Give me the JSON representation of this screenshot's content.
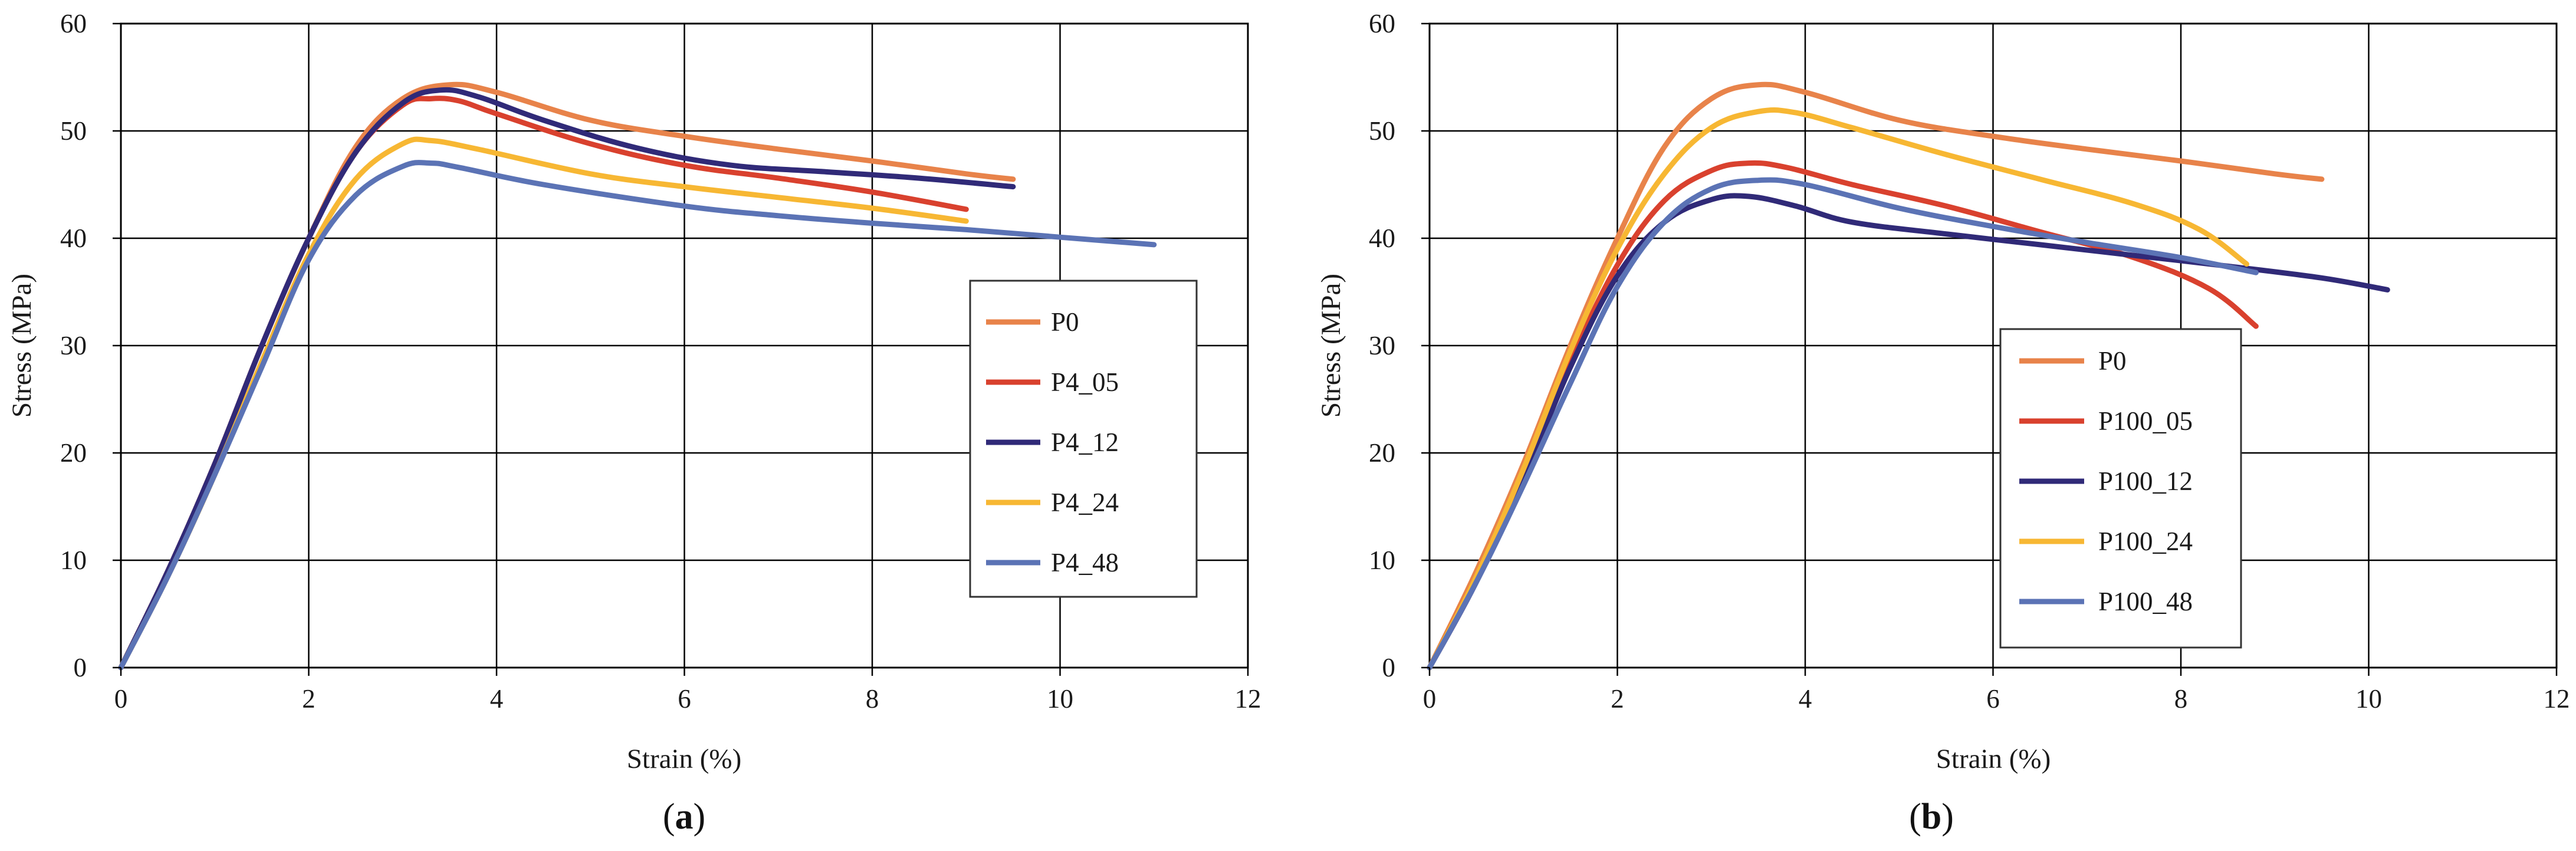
{
  "chart_data": [
    {
      "type": "line",
      "panel": "a",
      "panel_label": "a",
      "xlabel": "Strain (%)",
      "ylabel": "Stress (MPa)",
      "xlim": [
        0,
        12
      ],
      "ylim": [
        0,
        60
      ],
      "xticks": [
        0,
        2,
        4,
        6,
        8,
        10,
        12
      ],
      "yticks": [
        0,
        10,
        20,
        30,
        40,
        50,
        60
      ],
      "grid": true,
      "legend_position": "right",
      "series": [
        {
          "name": "P0",
          "color": "#E8834A",
          "points": [
            [
              0,
              0
            ],
            [
              0.5,
              9
            ],
            [
              1,
              19
            ],
            [
              1.5,
              30
            ],
            [
              2,
              40
            ],
            [
              2.5,
              48.5
            ],
            [
              3,
              53
            ],
            [
              3.5,
              54.3
            ],
            [
              4,
              53.6
            ],
            [
              5,
              51
            ],
            [
              6,
              49.5
            ],
            [
              7,
              48.3
            ],
            [
              8,
              47.2
            ],
            [
              9,
              46
            ],
            [
              9.5,
              45.5
            ]
          ]
        },
        {
          "name": "P4_05",
          "color": "#D9412E",
          "points": [
            [
              0,
              0
            ],
            [
              0.5,
              9
            ],
            [
              1,
              19
            ],
            [
              1.5,
              30
            ],
            [
              2,
              40
            ],
            [
              2.5,
              48
            ],
            [
              3,
              52.4
            ],
            [
              3.3,
              53
            ],
            [
              3.6,
              52.8
            ],
            [
              4,
              51.6
            ],
            [
              5,
              48.8
            ],
            [
              6,
              46.8
            ],
            [
              7,
              45.6
            ],
            [
              8,
              44.3
            ],
            [
              9,
              42.7
            ]
          ]
        },
        {
          "name": "P4_12",
          "color": "#302A78",
          "points": [
            [
              0,
              0
            ],
            [
              0.5,
              9
            ],
            [
              1,
              19
            ],
            [
              1.5,
              30
            ],
            [
              2,
              40
            ],
            [
              2.5,
              48
            ],
            [
              3,
              52.6
            ],
            [
              3.4,
              53.8
            ],
            [
              3.8,
              53.2
            ],
            [
              4.5,
              51
            ],
            [
              5.5,
              48.4
            ],
            [
              6.5,
              46.8
            ],
            [
              7.5,
              46.2
            ],
            [
              8.5,
              45.6
            ],
            [
              9.5,
              44.8
            ]
          ]
        },
        {
          "name": "P4_24",
          "color": "#F7B733",
          "points": [
            [
              0,
              0
            ],
            [
              0.5,
              8.5
            ],
            [
              1,
              18
            ],
            [
              1.5,
              28.5
            ],
            [
              2,
              38.5
            ],
            [
              2.5,
              45.5
            ],
            [
              3,
              48.8
            ],
            [
              3.3,
              49.1
            ],
            [
              3.8,
              48.3
            ],
            [
              5,
              46
            ],
            [
              6,
              44.8
            ],
            [
              7,
              43.8
            ],
            [
              8,
              42.8
            ],
            [
              9,
              41.6
            ]
          ]
        },
        {
          "name": "P4_48",
          "color": "#5B73B5",
          "points": [
            [
              0,
              0
            ],
            [
              0.5,
              8.5
            ],
            [
              1,
              18
            ],
            [
              1.5,
              28
            ],
            [
              2,
              38
            ],
            [
              2.5,
              44
            ],
            [
              3,
              46.7
            ],
            [
              3.3,
              47
            ],
            [
              3.6,
              46.6
            ],
            [
              4.5,
              45
            ],
            [
              6,
              43
            ],
            [
              7,
              42.1
            ],
            [
              8,
              41.4
            ],
            [
              9,
              40.8
            ],
            [
              10,
              40.1
            ],
            [
              11,
              39.4
            ]
          ]
        }
      ]
    },
    {
      "type": "line",
      "panel": "b",
      "panel_label": "b",
      "xlabel": "Strain (%)",
      "ylabel": "Stress (MPa)",
      "xlim": [
        0,
        12
      ],
      "ylim": [
        0,
        60
      ],
      "xticks": [
        0,
        2,
        4,
        6,
        8,
        10,
        12
      ],
      "yticks": [
        0,
        10,
        20,
        30,
        40,
        50,
        60
      ],
      "grid": true,
      "legend_position": "center-bottom",
      "series": [
        {
          "name": "P0",
          "color": "#E8834A",
          "points": [
            [
              0,
              0
            ],
            [
              0.5,
              9
            ],
            [
              1,
              19
            ],
            [
              1.5,
              30
            ],
            [
              2,
              40
            ],
            [
              2.5,
              48.5
            ],
            [
              3,
              53
            ],
            [
              3.5,
              54.3
            ],
            [
              4,
              53.6
            ],
            [
              5,
              51
            ],
            [
              6,
              49.5
            ],
            [
              7,
              48.3
            ],
            [
              8,
              47.2
            ],
            [
              9,
              46
            ],
            [
              9.5,
              45.5
            ]
          ]
        },
        {
          "name": "P100_05",
          "color": "#D9412E",
          "points": [
            [
              0,
              0
            ],
            [
              0.5,
              8.5
            ],
            [
              1,
              18
            ],
            [
              1.5,
              28.5
            ],
            [
              2,
              37.5
            ],
            [
              2.5,
              43.5
            ],
            [
              3,
              46.3
            ],
            [
              3.4,
              47
            ],
            [
              3.8,
              46.6
            ],
            [
              4.5,
              45
            ],
            [
              5.5,
              43
            ],
            [
              6.5,
              40.6
            ],
            [
              7.5,
              38.2
            ],
            [
              8.3,
              35.3
            ],
            [
              8.8,
              31.8
            ]
          ]
        },
        {
          "name": "P100_12",
          "color": "#302A78",
          "points": [
            [
              0,
              0
            ],
            [
              0.5,
              8
            ],
            [
              1,
              17.5
            ],
            [
              1.5,
              28
            ],
            [
              2,
              36.5
            ],
            [
              2.5,
              41.5
            ],
            [
              3,
              43.6
            ],
            [
              3.4,
              43.9
            ],
            [
              3.9,
              43
            ],
            [
              4.5,
              41.5
            ],
            [
              5.5,
              40.4
            ],
            [
              6.5,
              39.4
            ],
            [
              7.5,
              38.4
            ],
            [
              8.5,
              37.4
            ],
            [
              9.5,
              36.3
            ],
            [
              10.2,
              35.2
            ]
          ]
        },
        {
          "name": "P100_24",
          "color": "#F7B733",
          "points": [
            [
              0,
              0
            ],
            [
              0.5,
              8.5
            ],
            [
              1,
              18.5
            ],
            [
              1.5,
              29.5
            ],
            [
              2,
              39
            ],
            [
              2.5,
              46
            ],
            [
              3,
              50.3
            ],
            [
              3.5,
              51.8
            ],
            [
              3.9,
              51.7
            ],
            [
              4.5,
              50.3
            ],
            [
              5.5,
              47.8
            ],
            [
              6.5,
              45.5
            ],
            [
              7.5,
              43.2
            ],
            [
              8.2,
              40.8
            ],
            [
              8.7,
              37.6
            ]
          ]
        },
        {
          "name": "P100_48",
          "color": "#5B73B5",
          "points": [
            [
              0,
              0
            ],
            [
              0.5,
              8
            ],
            [
              1,
              17
            ],
            [
              1.5,
              26.5
            ],
            [
              2,
              35.5
            ],
            [
              2.5,
              41.5
            ],
            [
              3,
              44.6
            ],
            [
              3.5,
              45.4
            ],
            [
              4,
              45
            ],
            [
              5,
              42.8
            ],
            [
              6,
              41.1
            ],
            [
              7,
              39.6
            ],
            [
              8,
              38.2
            ],
            [
              8.8,
              36.8
            ]
          ]
        }
      ]
    }
  ]
}
